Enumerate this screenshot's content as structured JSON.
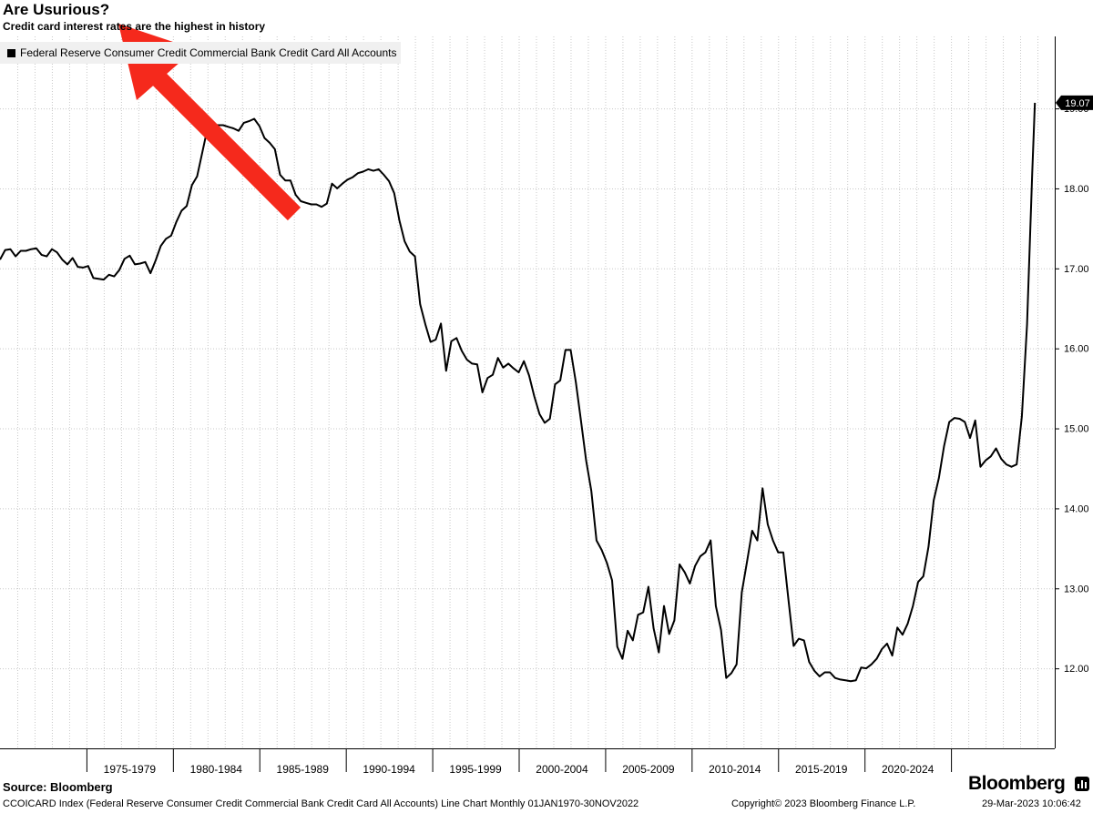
{
  "chart_data": {
    "type": "line",
    "title": "Are Usurious?",
    "subtitle": "Credit card interest rates are the highest in history",
    "series": [
      {
        "name": "Federal Reserve Consumer Credit Commercial Bank Credit Card All Accounts",
        "color": "#000000",
        "points": [
          [
            1970.0,
            17.11
          ],
          [
            1970.3,
            17.23
          ],
          [
            1970.6,
            17.24
          ],
          [
            1970.9,
            17.15
          ],
          [
            1971.2,
            17.22
          ],
          [
            1971.5,
            17.22
          ],
          [
            1971.8,
            17.24
          ],
          [
            1972.1,
            17.25
          ],
          [
            1972.4,
            17.17
          ],
          [
            1972.7,
            17.15
          ],
          [
            1973.0,
            17.24
          ],
          [
            1973.3,
            17.2
          ],
          [
            1973.6,
            17.11
          ],
          [
            1973.9,
            17.05
          ],
          [
            1974.2,
            17.13
          ],
          [
            1974.5,
            17.02
          ],
          [
            1974.8,
            17.01
          ],
          [
            1975.1,
            17.03
          ],
          [
            1975.4,
            16.88
          ],
          [
            1975.7,
            16.87
          ],
          [
            1976.0,
            16.86
          ],
          [
            1976.3,
            16.92
          ],
          [
            1976.6,
            16.9
          ],
          [
            1976.9,
            16.98
          ],
          [
            1977.2,
            17.12
          ],
          [
            1977.5,
            17.16
          ],
          [
            1977.8,
            17.05
          ],
          [
            1978.1,
            17.06
          ],
          [
            1978.4,
            17.08
          ],
          [
            1978.7,
            16.94
          ],
          [
            1979.0,
            17.1
          ],
          [
            1979.3,
            17.28
          ],
          [
            1979.6,
            17.37
          ],
          [
            1979.9,
            17.41
          ],
          [
            1980.2,
            17.58
          ],
          [
            1980.5,
            17.72
          ],
          [
            1980.8,
            17.78
          ],
          [
            1981.1,
            18.04
          ],
          [
            1981.4,
            18.15
          ],
          [
            1981.7,
            18.45
          ],
          [
            1982.0,
            18.75
          ],
          [
            1982.3,
            18.8
          ],
          [
            1982.6,
            18.79
          ],
          [
            1982.9,
            18.79
          ],
          [
            1983.2,
            18.77
          ],
          [
            1983.5,
            18.75
          ],
          [
            1983.8,
            18.72
          ],
          [
            1984.1,
            18.82
          ],
          [
            1984.4,
            18.84
          ],
          [
            1984.7,
            18.87
          ],
          [
            1985.0,
            18.78
          ],
          [
            1985.3,
            18.63
          ],
          [
            1985.6,
            18.57
          ],
          [
            1985.9,
            18.49
          ],
          [
            1986.2,
            18.17
          ],
          [
            1986.5,
            18.1
          ],
          [
            1986.8,
            18.1
          ],
          [
            1987.1,
            17.92
          ],
          [
            1987.4,
            17.84
          ],
          [
            1987.7,
            17.82
          ],
          [
            1988.0,
            17.8
          ],
          [
            1988.3,
            17.8
          ],
          [
            1988.6,
            17.77
          ],
          [
            1988.9,
            17.81
          ],
          [
            1989.2,
            18.06
          ],
          [
            1989.5,
            18.0
          ],
          [
            1989.8,
            18.06
          ],
          [
            1990.1,
            18.11
          ],
          [
            1990.4,
            18.14
          ],
          [
            1990.7,
            18.19
          ],
          [
            1991.0,
            18.21
          ],
          [
            1991.3,
            18.24
          ],
          [
            1991.6,
            18.22
          ],
          [
            1991.9,
            18.24
          ],
          [
            1992.2,
            18.17
          ],
          [
            1992.5,
            18.09
          ],
          [
            1992.8,
            17.94
          ],
          [
            1993.1,
            17.6
          ],
          [
            1993.4,
            17.34
          ],
          [
            1993.7,
            17.21
          ],
          [
            1994.0,
            17.15
          ],
          [
            1994.3,
            16.55
          ],
          [
            1994.6,
            16.3
          ],
          [
            1994.9,
            16.08
          ],
          [
            1995.2,
            16.11
          ],
          [
            1995.5,
            16.31
          ],
          [
            1995.8,
            15.72
          ],
          [
            1996.1,
            16.09
          ],
          [
            1996.4,
            16.13
          ],
          [
            1996.7,
            15.97
          ],
          [
            1997.0,
            15.86
          ],
          [
            1997.3,
            15.81
          ],
          [
            1997.6,
            15.8
          ],
          [
            1997.9,
            15.45
          ],
          [
            1998.2,
            15.63
          ],
          [
            1998.5,
            15.67
          ],
          [
            1998.8,
            15.88
          ],
          [
            1999.1,
            15.76
          ],
          [
            1999.4,
            15.81
          ],
          [
            1999.7,
            15.75
          ],
          [
            2000.0,
            15.7
          ],
          [
            2000.3,
            15.84
          ],
          [
            2000.6,
            15.66
          ],
          [
            2000.9,
            15.4
          ],
          [
            2001.2,
            15.18
          ],
          [
            2001.5,
            15.07
          ],
          [
            2001.8,
            15.12
          ],
          [
            2002.1,
            15.55
          ],
          [
            2002.4,
            15.6
          ],
          [
            2002.7,
            15.98
          ],
          [
            2003.0,
            15.98
          ],
          [
            2003.3,
            15.58
          ],
          [
            2003.6,
            15.1
          ],
          [
            2003.9,
            14.6
          ],
          [
            2004.2,
            14.22
          ],
          [
            2004.5,
            13.6
          ],
          [
            2004.8,
            13.48
          ],
          [
            2005.1,
            13.32
          ],
          [
            2005.4,
            13.1
          ],
          [
            2005.7,
            12.27
          ],
          [
            2006.0,
            12.12
          ],
          [
            2006.3,
            12.47
          ],
          [
            2006.6,
            12.35
          ],
          [
            2006.9,
            12.67
          ],
          [
            2007.2,
            12.7
          ],
          [
            2007.5,
            13.02
          ],
          [
            2007.8,
            12.5
          ],
          [
            2008.1,
            12.2
          ],
          [
            2008.4,
            12.78
          ],
          [
            2008.7,
            12.43
          ],
          [
            2009.0,
            12.6
          ],
          [
            2009.3,
            13.3
          ],
          [
            2009.6,
            13.2
          ],
          [
            2009.9,
            13.06
          ],
          [
            2010.2,
            13.28
          ],
          [
            2010.5,
            13.4
          ],
          [
            2010.8,
            13.45
          ],
          [
            2011.1,
            13.6
          ],
          [
            2011.4,
            12.78
          ],
          [
            2011.7,
            12.48
          ],
          [
            2012.0,
            11.88
          ],
          [
            2012.3,
            11.94
          ],
          [
            2012.6,
            12.05
          ],
          [
            2012.9,
            12.95
          ],
          [
            2013.2,
            13.33
          ],
          [
            2013.5,
            13.72
          ],
          [
            2013.8,
            13.6
          ],
          [
            2014.1,
            14.25
          ],
          [
            2014.4,
            13.8
          ],
          [
            2014.7,
            13.6
          ],
          [
            2015.0,
            13.45
          ],
          [
            2015.3,
            13.45
          ],
          [
            2015.6,
            12.85
          ],
          [
            2015.9,
            12.28
          ],
          [
            2016.2,
            12.37
          ],
          [
            2016.5,
            12.35
          ],
          [
            2016.8,
            12.08
          ],
          [
            2017.1,
            11.97
          ],
          [
            2017.4,
            11.9
          ],
          [
            2017.7,
            11.95
          ],
          [
            2018.0,
            11.95
          ],
          [
            2018.3,
            11.88
          ],
          [
            2018.6,
            11.86
          ],
          [
            2018.9,
            11.85
          ],
          [
            2019.2,
            11.84
          ],
          [
            2019.5,
            11.85
          ],
          [
            2019.8,
            12.01
          ],
          [
            2020.1,
            12.0
          ],
          [
            2020.4,
            12.05
          ],
          [
            2020.7,
            12.12
          ],
          [
            2021.0,
            12.24
          ],
          [
            2021.3,
            12.31
          ],
          [
            2021.6,
            12.16
          ],
          [
            2021.9,
            12.51
          ],
          [
            2022.2,
            12.42
          ],
          [
            2022.5,
            12.56
          ],
          [
            2022.8,
            12.78
          ],
          [
            2023.1,
            13.08
          ],
          [
            2023.4,
            13.15
          ],
          [
            2023.7,
            13.52
          ],
          [
            2024.0,
            14.1
          ],
          [
            2024.3,
            14.38
          ],
          [
            2024.6,
            14.78
          ],
          [
            2024.9,
            15.08
          ],
          [
            2025.2,
            15.13
          ],
          [
            2025.5,
            15.12
          ],
          [
            2025.8,
            15.08
          ],
          [
            2026.1,
            14.88
          ],
          [
            2026.4,
            15.1
          ],
          [
            2026.7,
            14.52
          ],
          [
            2027.0,
            14.6
          ],
          [
            2027.3,
            14.65
          ],
          [
            2027.6,
            14.75
          ],
          [
            2027.9,
            14.62
          ],
          [
            2028.2,
            14.55
          ],
          [
            2028.5,
            14.52
          ],
          [
            2028.8,
            14.55
          ],
          [
            2029.1,
            15.15
          ],
          [
            2029.4,
            16.3
          ],
          [
            2029.7,
            18.2
          ],
          [
            2029.85,
            19.07
          ]
        ]
      }
    ],
    "y_axis": {
      "side": "right",
      "min": 11.0,
      "max": 19.9,
      "ticks": [
        "12.00",
        "13.00",
        "14.00",
        "15.00",
        "16.00",
        "17.00",
        "18.00",
        "19.00"
      ]
    },
    "x_axis": {
      "min": 1970.0,
      "max": 2031.0,
      "ticks": [
        "1975-1979",
        "1980-1984",
        "1985-1989",
        "1990-1994",
        "1995-1999",
        "2000-2004",
        "2005-2009",
        "2010-2014",
        "2015-2019",
        "2020-2024"
      ]
    },
    "last_value_label": "19.07",
    "grid": true,
    "legend_position": "top-left",
    "line_color": "#000000",
    "grid_color": "#c8c8c8",
    "annotation": {
      "type": "arrow",
      "color": "#f5291c",
      "points_to": "title"
    }
  },
  "footer": {
    "source": "Source: Bloomberg",
    "description": "CCOICARD Index (Federal Reserve Consumer Credit Commercial Bank Credit Card All Accounts) Line Chart  Monthly 01JAN1970-30NOV2022",
    "copyright": "Copyright© 2023 Bloomberg Finance L.P.",
    "timestamp": "29-Mar-2023 10:06:42",
    "brand": "Bloomberg"
  }
}
